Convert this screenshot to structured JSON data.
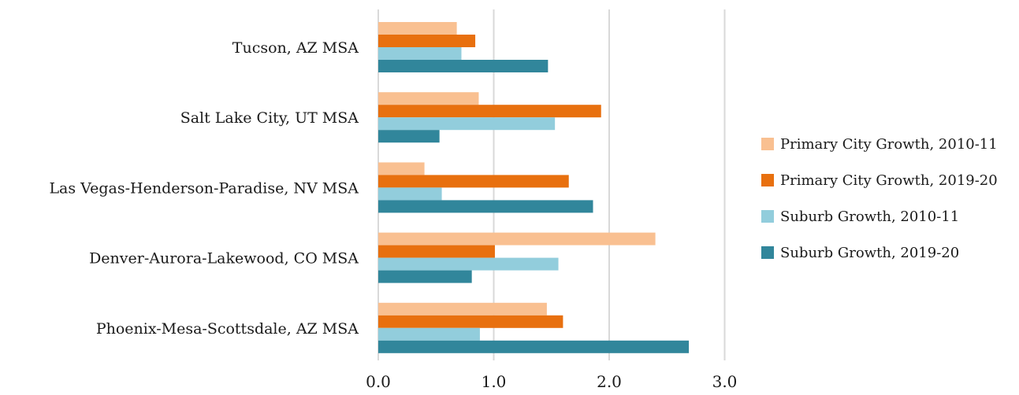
{
  "chart_data": {
    "type": "bar",
    "orientation": "horizontal",
    "categories": [
      "Phoenix-Mesa-Scottsdale, AZ MSA",
      "Denver-Aurora-Lakewood, CO MSA",
      "Las Vegas-Henderson-Paradise, NV MSA",
      "Salt Lake City, UT MSA",
      "Tucson, AZ MSA"
    ],
    "series": [
      {
        "name": "Primary City Growth, 2010-11",
        "color": "#f9c091",
        "values": [
          1.46,
          2.4,
          0.4,
          0.87,
          0.68
        ]
      },
      {
        "name": "Primary City Growth, 2019-20",
        "color": "#e8700f",
        "values": [
          1.6,
          1.01,
          1.65,
          1.93,
          0.84
        ]
      },
      {
        "name": "Suburb Growth, 2010-11",
        "color": "#92cddc",
        "values": [
          0.88,
          1.56,
          0.55,
          1.53,
          0.72
        ]
      },
      {
        "name": "Suburb Growth, 2019-20",
        "color": "#31869b",
        "values": [
          2.69,
          0.81,
          1.86,
          0.53,
          1.47
        ]
      }
    ],
    "xlim": [
      0,
      3
    ],
    "xticks": [
      "0.0",
      "1.0",
      "2.0",
      "3.0"
    ],
    "grid": true,
    "legend_position": "right",
    "title": "",
    "xlabel": "",
    "ylabel": ""
  }
}
